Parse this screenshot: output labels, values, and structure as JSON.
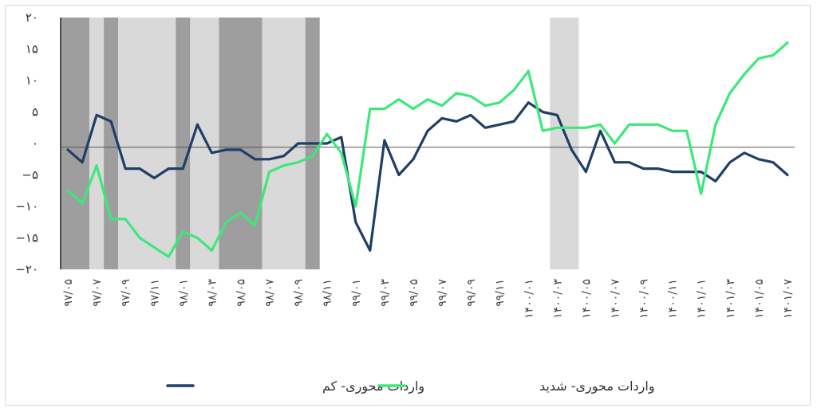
{
  "chart_data": {
    "type": "line",
    "title": "",
    "xlabel": "",
    "ylabel": "",
    "ylim": [
      -20,
      20
    ],
    "yticks": [
      "−۲۰",
      "−۱۵",
      "−۱۰",
      "−۵",
      "۰",
      "۵",
      "۱۰",
      "۱۵",
      "۲۰"
    ],
    "ytick_values": [
      -20,
      -15,
      -10,
      -5,
      0,
      5,
      10,
      15,
      20
    ],
    "x_tick_labels": [
      "۹۷/۰۵",
      "۹۷/۰۷",
      "۹۷/۰۹",
      "۹۷/۱۱",
      "۹۸/۰۱",
      "۹۸/۰۳",
      "۹۸/۰۵",
      "۹۸/۰۷",
      "۹۸/۰۹",
      "۹۸/۱۱",
      "۹۹/۰۱",
      "۹۹/۰۳",
      "۹۹/۰۵",
      "۹۹/۰۷",
      "۹۹/۰۹",
      "۹۹/۱۱",
      "۱۴۰۰/۰۱",
      "۱۴۰۰/۰۳",
      "۱۴۰۰/۰۵",
      "۱۴۰۰/۰۷",
      "۱۴۰۰/۰۹",
      "۱۴۰۰/۱۱",
      "۱۴۰۱/۰۱",
      "۱۴۰۱/۰۳",
      "۱۴۰۱/۰۵",
      "۱۴۰۱/۰۷"
    ],
    "x_tick_positions": [
      0,
      2,
      4,
      6,
      8,
      10,
      12,
      14,
      16,
      18,
      20,
      22,
      24,
      26,
      28,
      30,
      32,
      34,
      36,
      38,
      40,
      42,
      44,
      46,
      48,
      50
    ],
    "x_count": 51,
    "baseline": -0.6,
    "shaded_regions": [
      {
        "from": -0.5,
        "to": 1.5,
        "shade": "dark"
      },
      {
        "from": 1.5,
        "to": 2.5,
        "shade": "light"
      },
      {
        "from": 2.5,
        "to": 3.5,
        "shade": "dark"
      },
      {
        "from": 3.5,
        "to": 7.5,
        "shade": "light"
      },
      {
        "from": 7.5,
        "to": 8.5,
        "shade": "dark"
      },
      {
        "from": 8.5,
        "to": 10.5,
        "shade": "light"
      },
      {
        "from": 10.5,
        "to": 13.5,
        "shade": "dark"
      },
      {
        "from": 13.5,
        "to": 16.5,
        "shade": "light"
      },
      {
        "from": 16.5,
        "to": 17.5,
        "shade": "dark"
      },
      {
        "from": 33.5,
        "to": 35.5,
        "shade": "light"
      }
    ],
    "series": [
      {
        "name": "واردات محوری- کم",
        "color": "#1f3f66",
        "values": [
          -1,
          -3,
          4.5,
          3.5,
          -4,
          -4,
          -5.5,
          -4,
          -4,
          3,
          -1.5,
          -1,
          -1,
          -2.5,
          -2.5,
          -2,
          0,
          0,
          0,
          1,
          -12.5,
          -17,
          0.5,
          -5,
          -2.5,
          2,
          4,
          3.5,
          4.5,
          2.5,
          3,
          3.5,
          6.5,
          5,
          4.5,
          -1,
          -4.5,
          2,
          -3,
          -3,
          -4,
          -4,
          -4.5,
          -4.5,
          -4.5,
          -6,
          -3,
          -1.5,
          -2.5,
          -3,
          -5
        ]
      },
      {
        "name": "واردات محوری- شدید",
        "color": "#3de87a",
        "values": [
          -7.5,
          -9.5,
          -3.5,
          -12,
          -12,
          -15,
          -16.5,
          -18,
          -14,
          -15,
          -17,
          -12.5,
          -11,
          -13,
          -4.5,
          -3.5,
          -3,
          -2,
          1.5,
          -1.5,
          -10,
          5.5,
          5.5,
          7,
          5.5,
          7,
          6,
          8,
          7.5,
          6,
          6.5,
          8.5,
          11.5,
          2,
          2.5,
          2.5,
          2.5,
          3,
          0,
          3,
          3,
          3,
          2,
          2,
          -8,
          3,
          8,
          11,
          13.5,
          14,
          16
        ]
      }
    ],
    "legend": {
      "position": "bottom-center"
    }
  }
}
